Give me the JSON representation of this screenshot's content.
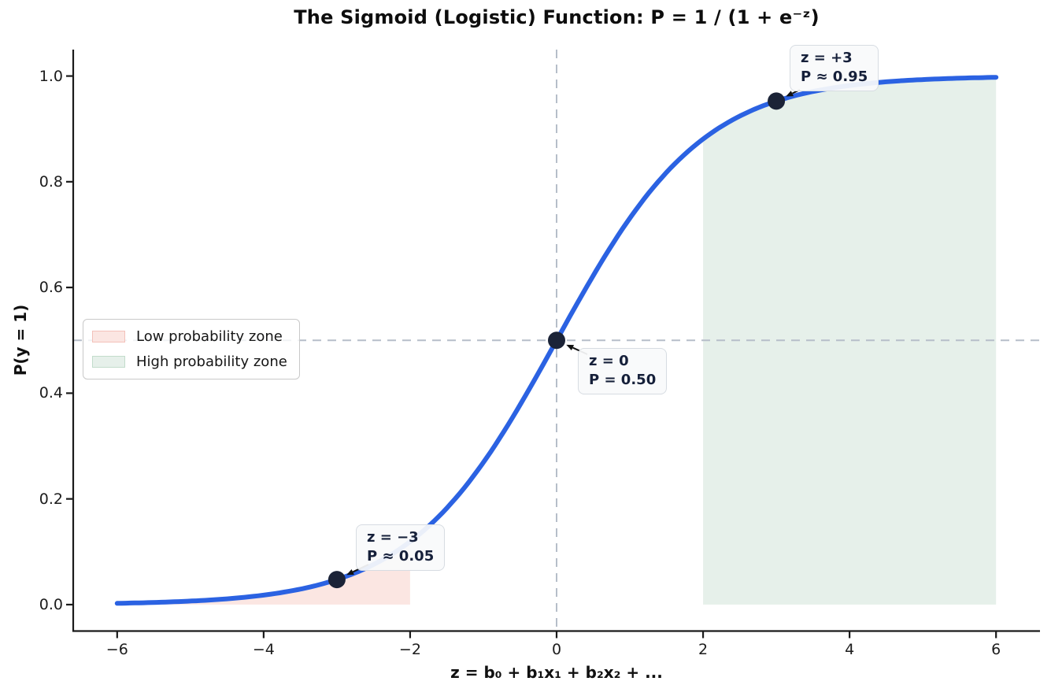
{
  "chart_data": {
    "type": "line",
    "title": "The Sigmoid (Logistic) Function: P = 1 / (1 + e⁻ᶻ)",
    "xlabel": "z = b₀ + b₁x₁ + b₂x₂ + ...",
    "ylabel": "P(y = 1)",
    "curve": {
      "name": "sigmoid",
      "formula": "P = 1 / (1 + exp(-z))",
      "x_min": -6,
      "x_max": 6,
      "color": "#2b62e2",
      "sample_points": {
        "x": [
          -6,
          -5,
          -4,
          -3,
          -2,
          -1,
          0,
          1,
          2,
          3,
          4,
          5,
          6
        ],
        "p": [
          0.0025,
          0.0067,
          0.018,
          0.0474,
          0.1192,
          0.2689,
          0.5,
          0.7311,
          0.8808,
          0.9526,
          0.982,
          0.9933,
          0.9975
        ]
      }
    },
    "xlim": [
      -6.6,
      6.6
    ],
    "ylim": [
      -0.05,
      1.05
    ],
    "xticks": {
      "values": [
        -6,
        -4,
        -2,
        0,
        2,
        4,
        6
      ],
      "labels": [
        "−6",
        "−4",
        "−2",
        "0",
        "2",
        "4",
        "6"
      ]
    },
    "yticks": {
      "values": [
        0.0,
        0.2,
        0.4,
        0.6,
        0.8,
        1.0
      ],
      "labels": [
        "0.0",
        "0.2",
        "0.4",
        "0.6",
        "0.8",
        "1.0"
      ]
    },
    "reference_lines": [
      {
        "orientation": "horizontal",
        "value": 0.5
      },
      {
        "orientation": "vertical",
        "value": 0
      }
    ],
    "zones": [
      {
        "name": "low-probability-zone",
        "x_from": -6,
        "x_to": -2,
        "fill": "#fbe6e2"
      },
      {
        "name": "high-probability-zone",
        "x_from": 2,
        "x_to": 6,
        "fill": "#e6f0ea"
      }
    ],
    "points": [
      {
        "z": -3,
        "p": 0.0474
      },
      {
        "z": 0,
        "p": 0.5
      },
      {
        "z": 3,
        "p": 0.9526
      }
    ],
    "annotations": [
      {
        "line1": "z = −3",
        "line2": "P ≈ 0.05",
        "target_z": -3
      },
      {
        "line1": "z = 0",
        "line2": "P = 0.50",
        "target_z": 0
      },
      {
        "line1": "z = +3",
        "line2": "P ≈ 0.95",
        "target_z": 3
      }
    ],
    "legend": {
      "position": "center-left",
      "items": [
        {
          "label": "Low probability zone",
          "fill": "#fbe6e2",
          "border": "#f3c1ba"
        },
        {
          "label": "High probability zone",
          "fill": "#e6f0ea",
          "border": "#c2dccb"
        }
      ]
    },
    "colors": {
      "curve": "#2b62e2",
      "point": "#1b2337",
      "reference_line": "#b6bec9",
      "spine": "#1a1a1a",
      "arrow": "#111111"
    }
  }
}
